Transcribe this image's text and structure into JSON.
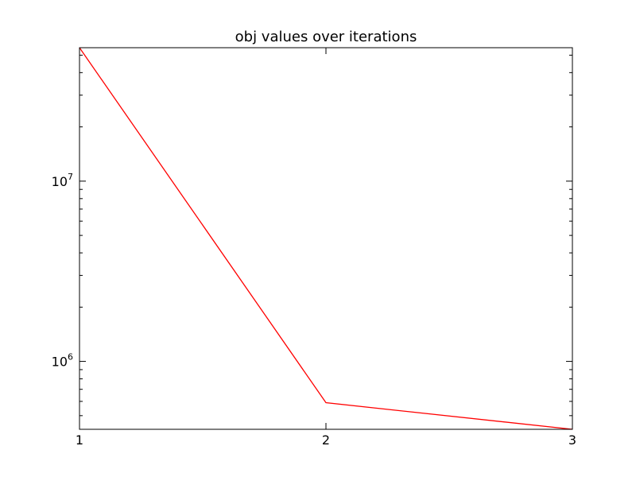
{
  "chart_data": {
    "type": "line",
    "title": "obj values over iterations",
    "xlabel": "",
    "ylabel": "",
    "x": [
      1,
      2,
      3
    ],
    "series": [
      {
        "values": [
          55000000,
          590000,
          420000
        ],
        "color": "#ff0000"
      }
    ],
    "xlim": [
      1,
      3
    ],
    "ylim": [
      420000,
      55000000
    ],
    "yscale": "log",
    "x_ticks": [
      "1",
      "2",
      "3"
    ],
    "y_ticks": [
      {
        "value": 1000000,
        "base": "10",
        "exp": "6"
      },
      {
        "value": 10000000,
        "base": "10",
        "exp": "7"
      }
    ],
    "grid": false,
    "legend": "none"
  }
}
